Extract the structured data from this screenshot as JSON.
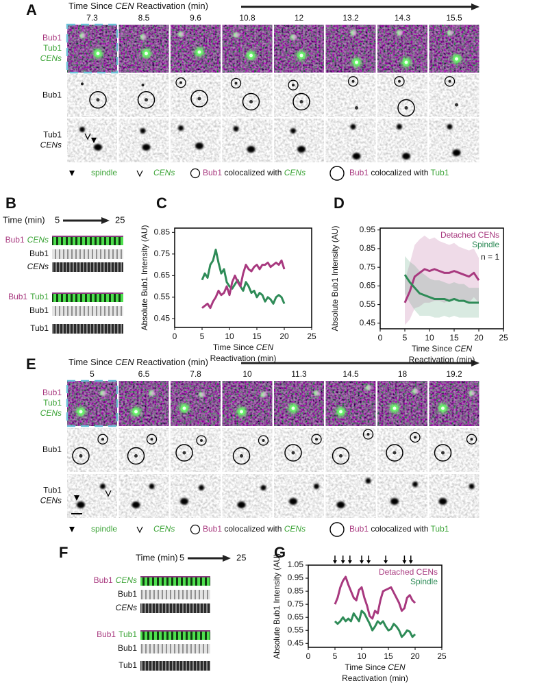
{
  "panels": {
    "A": {
      "letter": "A",
      "time_axis": [
        "Time Since ",
        "CEN",
        " Reactivation (min)"
      ],
      "times": [
        7.3,
        8.5,
        9.6,
        10.8,
        12,
        13.2,
        14.3,
        15.5
      ],
      "row_labels": [
        [
          "Bub1",
          "Tub1",
          "CENs"
        ],
        [
          "Bub1"
        ],
        [
          "Tub1",
          "CENs"
        ]
      ],
      "legend": {
        "spindle": "spindle",
        "cens": "CENs",
        "small_circle": [
          "Bub1",
          " colocalized with ",
          "CENs"
        ],
        "large_circle": [
          "Bub1",
          " colocalized with ",
          "Tub1"
        ]
      }
    },
    "B": {
      "letter": "B",
      "time_label": "Time (min)",
      "start": 5,
      "end": 25,
      "groups": [
        {
          "labels": [
            [
              "Bub1",
              "CENs"
            ],
            [
              "Bub1"
            ],
            [
              "CENs"
            ]
          ]
        },
        {
          "labels": [
            [
              "Bub1",
              "Tub1"
            ],
            [
              "Bub1"
            ],
            [
              "Tub1"
            ]
          ]
        }
      ]
    },
    "E": {
      "letter": "E",
      "time_axis": [
        "Time Since ",
        "CEN",
        " Reactivation (min)"
      ],
      "times": [
        5,
        6.5,
        7.8,
        10,
        11.3,
        14.5,
        18,
        19.2
      ],
      "row_labels": [
        [
          "Bub1",
          "Tub1",
          "CENs"
        ],
        [
          "Bub1"
        ],
        [
          "Tub1",
          "CENs"
        ]
      ],
      "legend": {
        "spindle": "spindle",
        "cens": "CENs",
        "small_circle": [
          "Bub1",
          " colocalized with ",
          "CENs"
        ],
        "large_circle": [
          "Bub1",
          " colocalized with ",
          "Tub1"
        ]
      }
    },
    "F": {
      "letter": "F",
      "time_label": "Time (min)",
      "start": 5,
      "end": 25,
      "groups": [
        {
          "labels": [
            [
              "Bub1",
              "CENs"
            ],
            [
              "Bub1"
            ],
            [
              "CENs"
            ]
          ]
        },
        {
          "labels": [
            [
              "Bub1",
              "Tub1"
            ],
            [
              "Bub1"
            ],
            [
              "Tub1"
            ]
          ]
        }
      ]
    }
  },
  "chart_data": [
    {
      "type": "line",
      "panel_label": "C",
      "y_label": "Absolute Bub1 Intensity (AU)",
      "x_label": [
        "Time Since ",
        "CEN",
        "Reactivation (min)"
      ],
      "xlim": [
        0,
        25
      ],
      "xticks": [
        0,
        5,
        10,
        15,
        20,
        25
      ],
      "ylim": [
        0.41,
        0.87
      ],
      "yticks": [
        0.45,
        0.55,
        0.65,
        0.75,
        0.85
      ],
      "x": [
        5,
        5.5,
        6,
        6.5,
        7,
        7.5,
        8,
        8.5,
        9,
        9.5,
        10,
        10.5,
        11,
        11.5,
        12,
        12.5,
        13,
        13.5,
        14,
        14.5,
        15,
        15.5,
        16,
        16.5,
        17,
        17.5,
        18,
        18.5,
        19,
        19.5,
        20
      ],
      "series": [
        {
          "color": "#2e8b57",
          "values": [
            0.63,
            0.66,
            0.64,
            0.7,
            0.72,
            0.77,
            0.71,
            0.66,
            0.68,
            0.62,
            0.6,
            0.59,
            0.61,
            0.63,
            0.6,
            0.58,
            0.62,
            0.6,
            0.57,
            0.58,
            0.55,
            0.57,
            0.56,
            0.53,
            0.55,
            0.54,
            0.52,
            0.55,
            0.56,
            0.55,
            0.52
          ]
        },
        {
          "color": "#a8397f",
          "values": [
            0.5,
            0.51,
            0.52,
            0.5,
            0.53,
            0.55,
            0.58,
            0.56,
            0.57,
            0.6,
            0.56,
            0.62,
            0.65,
            0.62,
            0.6,
            0.66,
            0.7,
            0.68,
            0.67,
            0.69,
            0.7,
            0.68,
            0.7,
            0.7,
            0.71,
            0.69,
            0.7,
            0.71,
            0.7,
            0.72,
            0.68
          ]
        }
      ]
    },
    {
      "type": "line",
      "panel_label": "D",
      "y_label": "Absolute Bub1 Intensity (AU)",
      "x_label": [
        "Time Since ",
        "CEN",
        "Reactivation (min)"
      ],
      "xlim": [
        0,
        25
      ],
      "xticks": [
        0,
        5,
        10,
        15,
        20,
        25
      ],
      "ylim": [
        0.42,
        0.96
      ],
      "yticks": [
        0.45,
        0.55,
        0.65,
        0.75,
        0.85,
        0.95
      ],
      "legend": "upper right",
      "annotation": "n = 1",
      "x": [
        5,
        6,
        7,
        8,
        9,
        10,
        11,
        12,
        13,
        14,
        15,
        16,
        17,
        18,
        19,
        20
      ],
      "series": [
        {
          "name": "Detached CENs",
          "color": "#a8397f",
          "values": [
            0.56,
            0.62,
            0.7,
            0.72,
            0.74,
            0.73,
            0.74,
            0.73,
            0.72,
            0.72,
            0.73,
            0.72,
            0.71,
            0.7,
            0.72,
            0.68
          ],
          "errors": [
            0.12,
            0.15,
            0.17,
            0.18,
            0.18,
            0.17,
            0.17,
            0.16,
            0.16,
            0.15,
            0.15,
            0.14,
            0.14,
            0.14,
            0.13,
            0.12
          ]
        },
        {
          "name": "Spindle",
          "color": "#2e8b57",
          "values": [
            0.71,
            0.67,
            0.64,
            0.61,
            0.6,
            0.59,
            0.58,
            0.58,
            0.58,
            0.57,
            0.58,
            0.57,
            0.57,
            0.56,
            0.56,
            0.56
          ],
          "errors": [
            0.1,
            0.11,
            0.12,
            0.12,
            0.11,
            0.1,
            0.1,
            0.1,
            0.09,
            0.09,
            0.09,
            0.09,
            0.09,
            0.08,
            0.08,
            0.08
          ]
        }
      ]
    },
    {
      "type": "line",
      "panel_label": "G",
      "y_label": "Absolute Bub1 Intensity (AU)",
      "x_label": [
        "Time Since ",
        "CEN",
        "Reactivation (min)"
      ],
      "xlim": [
        0,
        25
      ],
      "xticks": [
        0,
        5,
        10,
        15,
        20,
        25
      ],
      "ylim": [
        0.42,
        1.05
      ],
      "yticks": [
        0.45,
        0.55,
        0.65,
        0.75,
        0.85,
        0.95,
        1.05
      ],
      "legend": "upper right",
      "events": [
        5,
        6.5,
        7.8,
        10,
        11.3,
        14.5,
        18,
        19.2
      ],
      "x": [
        5,
        5.5,
        6,
        6.5,
        7,
        7.5,
        8,
        8.5,
        9,
        9.5,
        10,
        10.5,
        11,
        11.5,
        12,
        12.5,
        13,
        13.5,
        14,
        14.5,
        15,
        15.5,
        16,
        16.5,
        17,
        17.5,
        18,
        18.5,
        19,
        19.5,
        20
      ],
      "series": [
        {
          "name": "Detached CENs",
          "color": "#a8397f",
          "values": [
            0.75,
            0.8,
            0.88,
            0.93,
            0.96,
            0.9,
            0.85,
            0.8,
            0.78,
            0.86,
            0.88,
            0.8,
            0.74,
            0.66,
            0.64,
            0.7,
            0.68,
            0.78,
            0.85,
            0.86,
            0.87,
            0.88,
            0.84,
            0.8,
            0.76,
            0.7,
            0.72,
            0.8,
            0.82,
            0.78,
            0.76
          ]
        },
        {
          "name": "Spindle",
          "color": "#2e8b57",
          "values": [
            0.62,
            0.6,
            0.62,
            0.65,
            0.62,
            0.64,
            0.62,
            0.68,
            0.65,
            0.62,
            0.7,
            0.68,
            0.64,
            0.6,
            0.55,
            0.58,
            0.62,
            0.6,
            0.62,
            0.58,
            0.55,
            0.56,
            0.6,
            0.58,
            0.55,
            0.5,
            0.52,
            0.55,
            0.54,
            0.5,
            0.52
          ]
        }
      ]
    }
  ]
}
